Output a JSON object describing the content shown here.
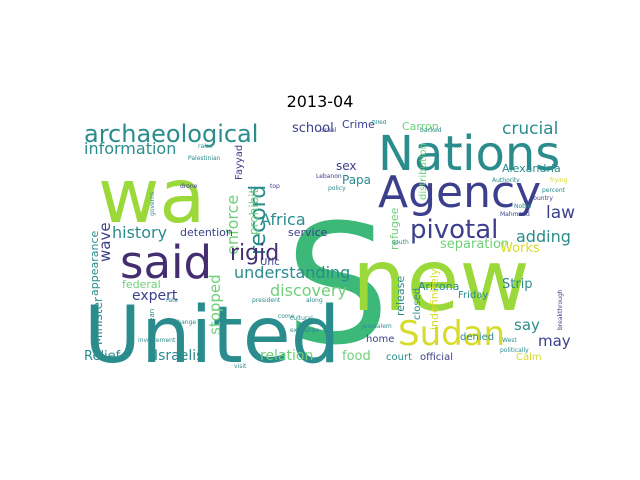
{
  "title": "2013-04",
  "colors": {
    "green": "#3cb878",
    "lime": "#9bd83a",
    "teal": "#2a8c8c",
    "navy": "#3b3f8c",
    "purple": "#452e70",
    "yellow": "#d7dc2a",
    "mint": "#6fd07a"
  },
  "words": [
    {
      "text": "S",
      "color": "green"
    },
    {
      "text": "wa",
      "color": "lime"
    },
    {
      "text": "new",
      "color": "lime"
    },
    {
      "text": "United",
      "color": "teal"
    },
    {
      "text": "Nations",
      "color": "teal"
    },
    {
      "text": "Agency",
      "color": "navy"
    },
    {
      "text": "said",
      "color": "purple"
    },
    {
      "text": "archaeological",
      "color": "teal"
    },
    {
      "text": "Sudan",
      "color": "yellow"
    },
    {
      "text": "pivotal",
      "color": "navy"
    },
    {
      "text": "record",
      "color": "teal"
    },
    {
      "text": "information",
      "color": "teal"
    },
    {
      "text": "crucial",
      "color": "teal"
    },
    {
      "text": "enforce",
      "color": "mint"
    },
    {
      "text": "Africa",
      "color": "teal"
    },
    {
      "text": "history",
      "color": "teal"
    },
    {
      "text": "rigid",
      "color": "purple"
    },
    {
      "text": "wave",
      "color": "navy"
    },
    {
      "text": "understanding",
      "color": "teal"
    },
    {
      "text": "discovery",
      "color": "mint"
    },
    {
      "text": "expert",
      "color": "navy"
    },
    {
      "text": "stopped",
      "color": "mint"
    },
    {
      "text": "law",
      "color": "navy"
    },
    {
      "text": "adding",
      "color": "teal"
    },
    {
      "text": "separation",
      "color": "mint"
    },
    {
      "text": "Works",
      "color": "yellow"
    },
    {
      "text": "Strip",
      "color": "teal"
    },
    {
      "text": "say",
      "color": "teal"
    },
    {
      "text": "may",
      "color": "navy"
    },
    {
      "text": "Israelis",
      "color": "teal"
    },
    {
      "text": "relation",
      "color": "mint"
    },
    {
      "text": "food",
      "color": "mint"
    },
    {
      "text": "Relief",
      "color": "teal"
    },
    {
      "text": "Minister",
      "color": "teal"
    },
    {
      "text": "school",
      "color": "navy"
    },
    {
      "text": "Crime",
      "color": "navy"
    },
    {
      "text": "Carron",
      "color": "mint"
    },
    {
      "text": "Papa",
      "color": "teal"
    },
    {
      "text": "sex",
      "color": "navy"
    },
    {
      "text": "Alexandria",
      "color": "teal"
    },
    {
      "text": "prohibit",
      "color": "mint"
    },
    {
      "text": "Arizona",
      "color": "teal"
    },
    {
      "text": "refugee",
      "color": "mint"
    },
    {
      "text": "detention",
      "color": "navy"
    },
    {
      "text": "service",
      "color": "navy"
    },
    {
      "text": "federal",
      "color": "mint"
    },
    {
      "text": "appearance",
      "color": "teal"
    },
    {
      "text": "release",
      "color": "teal"
    },
    {
      "text": "indefinitely",
      "color": "yellow"
    },
    {
      "text": "closed",
      "color": "teal"
    },
    {
      "text": "Friday",
      "color": "teal"
    },
    {
      "text": "denied",
      "color": "teal"
    },
    {
      "text": "home",
      "color": "navy"
    },
    {
      "text": "court",
      "color": "teal"
    },
    {
      "text": "official",
      "color": "navy"
    },
    {
      "text": "Calm",
      "color": "yellow"
    },
    {
      "text": "distribution",
      "color": "mint"
    },
    {
      "text": "Uric",
      "color": "navy"
    },
    {
      "text": "Fayyad",
      "color": "navy"
    },
    {
      "text": "Mediterranean",
      "color": "teal"
    },
    {
      "text": "Palestinian",
      "color": "teal"
    },
    {
      "text": "Jerusalem",
      "color": "teal"
    },
    {
      "text": "exchange",
      "color": "teal"
    },
    {
      "text": "president",
      "color": "teal"
    },
    {
      "text": "Lebanon",
      "color": "navy"
    },
    {
      "text": "policy",
      "color": "teal"
    },
    {
      "text": "Israel",
      "color": "navy"
    },
    {
      "text": "drone",
      "color": "navy"
    },
    {
      "text": "country",
      "color": "navy"
    },
    {
      "text": "Noble",
      "color": "teal"
    },
    {
      "text": "breakthrough",
      "color": "navy"
    },
    {
      "text": "Authority",
      "color": "teal"
    },
    {
      "text": "politically",
      "color": "teal"
    },
    {
      "text": "governs",
      "color": "teal"
    },
    {
      "text": "filled",
      "color": "teal"
    },
    {
      "text": "backed",
      "color": "teal"
    },
    {
      "text": "small",
      "color": "teal"
    },
    {
      "text": "top",
      "color": "navy"
    },
    {
      "text": "raise",
      "color": "teal"
    },
    {
      "text": "visit",
      "color": "teal"
    },
    {
      "text": "along",
      "color": "teal"
    },
    {
      "text": "rate",
      "color": "teal"
    },
    {
      "text": "change",
      "color": "teal"
    },
    {
      "text": "cultural",
      "color": "teal"
    },
    {
      "text": "frying",
      "color": "yellow"
    },
    {
      "text": "percent",
      "color": "teal"
    },
    {
      "text": "West",
      "color": "teal"
    },
    {
      "text": "Mahmoud",
      "color": "navy"
    },
    {
      "text": "involvement",
      "color": "teal"
    },
    {
      "text": "come",
      "color": "teal"
    },
    {
      "text": "south",
      "color": "teal"
    }
  ]
}
